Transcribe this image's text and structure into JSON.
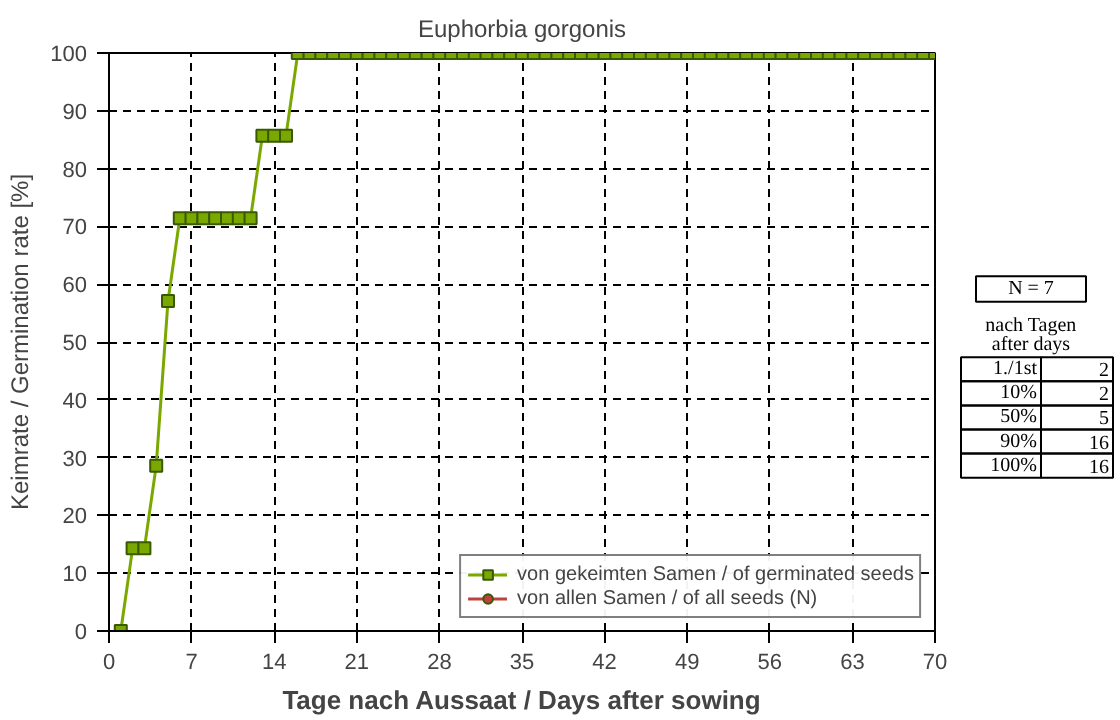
{
  "chart_data": {
    "type": "line",
    "title": "Euphorbia gorgonis",
    "xlabel": "Tage nach Aussaat / Days after sowing",
    "ylabel": "Keimrate / Germination rate [%]",
    "x": [
      1,
      2,
      3,
      4,
      5,
      6,
      7,
      8,
      9,
      10,
      11,
      12,
      13,
      14,
      15,
      16,
      17,
      18,
      19,
      20,
      21,
      22,
      23,
      24,
      25,
      26,
      27,
      28,
      29,
      30,
      31,
      32,
      33,
      34,
      35,
      36,
      37,
      38,
      39,
      40,
      41,
      42,
      43,
      44,
      45,
      46,
      47,
      48,
      49,
      50,
      51,
      52,
      53,
      54,
      55,
      56,
      57,
      58,
      59,
      60,
      61,
      62,
      63,
      64,
      65,
      66,
      67,
      68,
      69,
      70
    ],
    "series": [
      {
        "name": "von gekeimten Samen / of germinated seeds",
        "color": "#7aa800",
        "marker": "square",
        "values": [
          0,
          14.3,
          14.3,
          28.6,
          57.1,
          71.4,
          71.4,
          71.4,
          71.4,
          71.4,
          71.4,
          71.4,
          85.7,
          85.7,
          85.7,
          100,
          100,
          100,
          100,
          100,
          100,
          100,
          100,
          100,
          100,
          100,
          100,
          100,
          100,
          100,
          100,
          100,
          100,
          100,
          100,
          100,
          100,
          100,
          100,
          100,
          100,
          100,
          100,
          100,
          100,
          100,
          100,
          100,
          100,
          100,
          100,
          100,
          100,
          100,
          100,
          100,
          100,
          100,
          100,
          100,
          100,
          100,
          100,
          100,
          100,
          100,
          100,
          100,
          100,
          100
        ]
      },
      {
        "name": "von allen Samen / of all seeds (N)",
        "color": "#c04040",
        "marker": "circle",
        "values": [
          null,
          null,
          null,
          null,
          null,
          null,
          null,
          null,
          null,
          null,
          null,
          null,
          null,
          null,
          null,
          null,
          null,
          null,
          null,
          null,
          null,
          null,
          null,
          null,
          null,
          null,
          null,
          null,
          null,
          null,
          null,
          null,
          null,
          null,
          null,
          null,
          null,
          null,
          null,
          null,
          null,
          null,
          null,
          null,
          null,
          null,
          null,
          null,
          null,
          null,
          null,
          null,
          null,
          null,
          null,
          null,
          null,
          null,
          null,
          null,
          null,
          null,
          null,
          null,
          null,
          null,
          null,
          null,
          null,
          null
        ]
      }
    ],
    "xlim": [
      0,
      70
    ],
    "xticks": [
      0,
      7,
      14,
      21,
      28,
      35,
      42,
      49,
      56,
      63,
      70
    ],
    "ylim": [
      0,
      100
    ],
    "yticks": [
      0,
      10,
      20,
      30,
      40,
      50,
      60,
      70,
      80,
      90,
      100
    ],
    "grid": true,
    "legend": "bottom right",
    "annotations": [
      "N = 7",
      "nach Tagen",
      "after days",
      "1./1st",
      "2",
      "10%",
      "2",
      "50%",
      "5",
      "90%",
      "16",
      "100%",
      "16"
    ]
  }
}
